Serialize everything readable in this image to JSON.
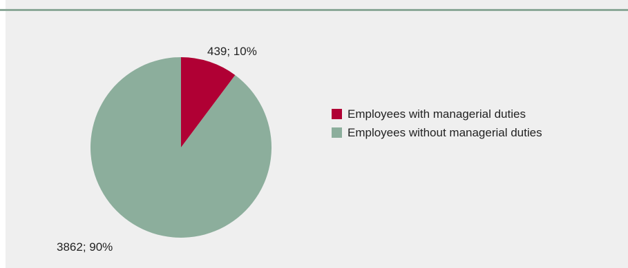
{
  "chart_data": {
    "type": "pie",
    "title": "",
    "slices": [
      {
        "label": "Employees with managerial duties",
        "value": 439,
        "percent": 10,
        "data_label": "439; 10%",
        "color": "#b00034"
      },
      {
        "label": "Employees without managerial duties",
        "value": 3862,
        "percent": 90,
        "data_label": "3862; 90%",
        "color": "#8cae9c"
      }
    ],
    "start_angle_deg": 0,
    "direction": "clockwise",
    "legend_position": "right"
  },
  "colors": {
    "background": "#efefef",
    "top_rule": "#8ba898"
  }
}
